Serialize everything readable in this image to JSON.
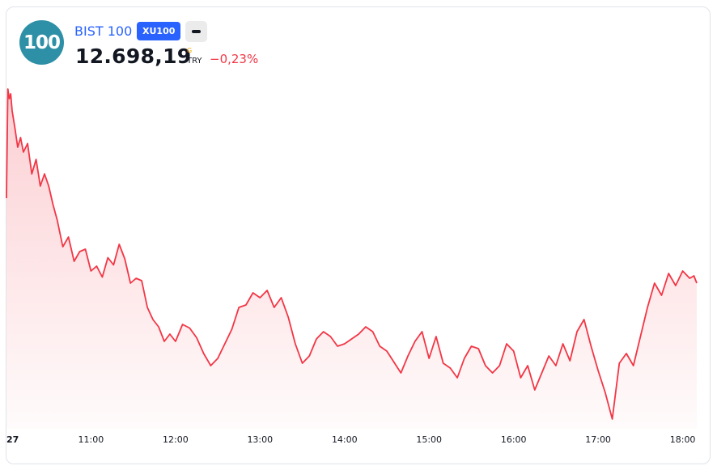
{
  "instrument": {
    "logo_text": "100",
    "name": "BIST 100",
    "ticker": "XU100",
    "market_icon": "minus-icon",
    "price": "12.698,19",
    "flag": "G",
    "currency": "TRY",
    "change": "−0,23%",
    "accent_color": "#2962ff",
    "logo_color": "#2e90a6",
    "down_color": "#f23645"
  },
  "chart_data": {
    "type": "area",
    "title": "",
    "xlabel": "",
    "ylabel": "",
    "x_ticks": [
      "27",
      "11:00",
      "12:00",
      "13:00",
      "14:00",
      "15:00",
      "16:00",
      "17:00",
      "18:00"
    ],
    "x_range": [
      "10:00",
      "18:10"
    ],
    "y_range": [
      12560,
      12850
    ],
    "grid": false,
    "line_color": "#f23645",
    "series": [
      {
        "x": [
          "10:00",
          "10:01",
          "10:02",
          "10:03",
          "10:04",
          "10:06",
          "10:08",
          "10:10",
          "10:12",
          "10:15",
          "10:18",
          "10:21",
          "10:24",
          "10:27",
          "10:30",
          "10:33",
          "10:36",
          "10:40",
          "10:44",
          "10:48",
          "10:52",
          "10:56",
          "11:00",
          "11:04",
          "11:08",
          "11:12",
          "11:16",
          "11:20",
          "11:24",
          "11:28",
          "11:32",
          "11:36",
          "11:40",
          "11:44",
          "11:48",
          "11:52",
          "11:56",
          "12:00",
          "12:05",
          "12:10",
          "12:15",
          "12:20",
          "12:25",
          "12:30",
          "12:35",
          "12:40",
          "12:45",
          "12:50",
          "12:55",
          "13:00",
          "13:05",
          "13:10",
          "13:15",
          "13:20",
          "13:25",
          "13:30",
          "13:35",
          "13:40",
          "13:45",
          "13:50",
          "13:55",
          "14:00",
          "14:05",
          "14:10",
          "14:15",
          "14:20",
          "14:25",
          "14:30",
          "14:35",
          "14:40",
          "14:45",
          "14:50",
          "14:55",
          "15:00",
          "15:05",
          "15:10",
          "15:15",
          "15:20",
          "15:25",
          "15:30",
          "15:35",
          "15:40",
          "15:45",
          "15:50",
          "15:55",
          "16:00",
          "16:05",
          "16:10",
          "16:15",
          "16:20",
          "16:25",
          "16:30",
          "16:35",
          "16:40",
          "16:45",
          "16:50",
          "16:55",
          "17:00",
          "17:05",
          "17:10",
          "17:15",
          "17:20",
          "17:25",
          "17:30",
          "17:35",
          "17:40",
          "17:45",
          "17:50",
          "17:55",
          "18:00",
          "18:05",
          "18:08",
          "18:10"
        ],
        "values": [
          12750,
          12840,
          12832,
          12836,
          12822,
          12808,
          12792,
          12800,
          12788,
          12795,
          12770,
          12782,
          12760,
          12770,
          12760,
          12745,
          12732,
          12710,
          12718,
          12698,
          12706,
          12708,
          12690,
          12694,
          12685,
          12701,
          12695,
          12712,
          12700,
          12680,
          12684,
          12682,
          12660,
          12650,
          12644,
          12632,
          12638,
          12632,
          12646,
          12643,
          12635,
          12622,
          12612,
          12618,
          12630,
          12642,
          12660,
          12662,
          12672,
          12668,
          12674,
          12660,
          12668,
          12652,
          12630,
          12614,
          12620,
          12634,
          12640,
          12636,
          12628,
          12630,
          12634,
          12638,
          12644,
          12640,
          12628,
          12624,
          12615,
          12606,
          12620,
          12632,
          12640,
          12618,
          12636,
          12614,
          12610,
          12602,
          12618,
          12628,
          12626,
          12612,
          12606,
          12612,
          12630,
          12624,
          12602,
          12612,
          12592,
          12606,
          12620,
          12612,
          12630,
          12616,
          12640,
          12650,
          12628,
          12608,
          12590,
          12568,
          12614,
          12622,
          12612,
          12636,
          12660,
          12680,
          12670,
          12688,
          12678,
          12690,
          12684,
          12686,
          12680
        ]
      }
    ]
  }
}
